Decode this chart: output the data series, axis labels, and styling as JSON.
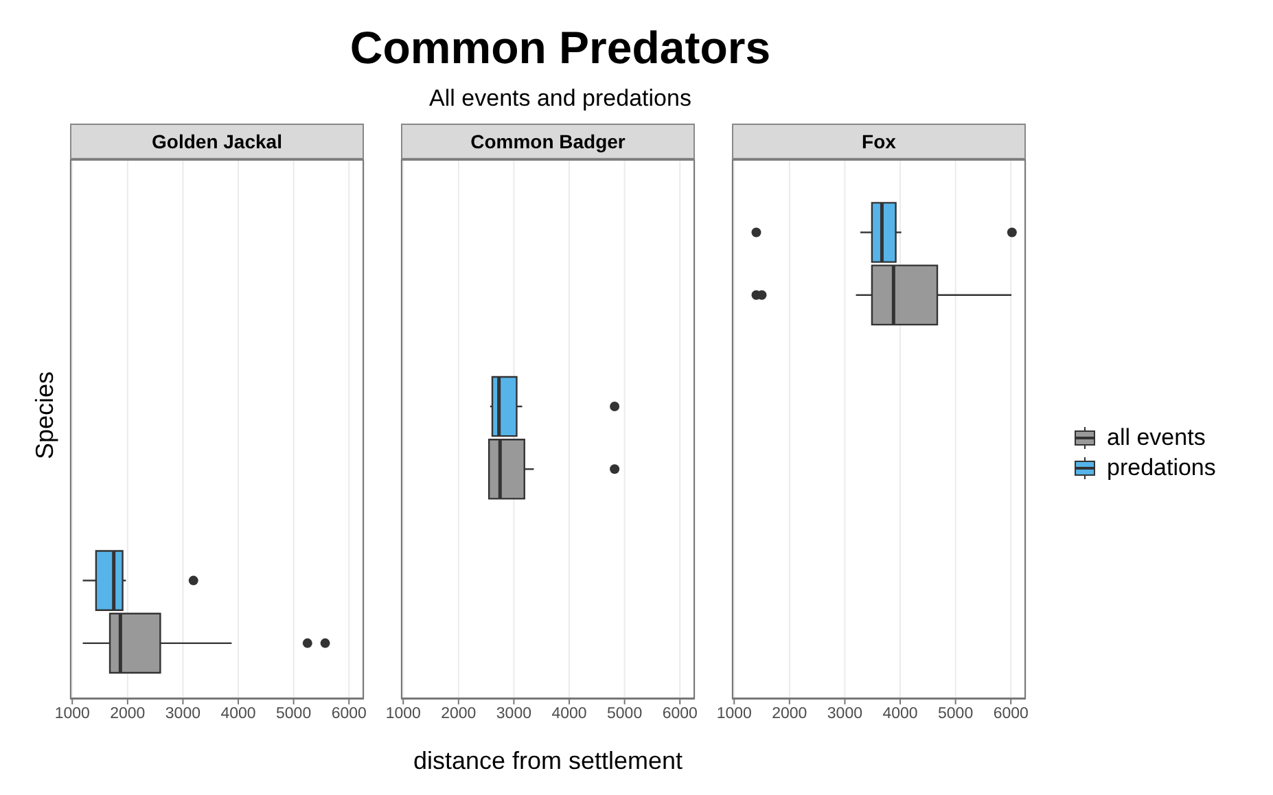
{
  "chart_data": [
    {
      "type": "box",
      "orientation": "horizontal",
      "title": "Golden Jackal",
      "ylabel": "Species",
      "annotations": [
        "Common Predators",
        "All events and predations"
      ],
      "categories": [
        null,
        null,
        null
      ],
      "xlim": [
        960,
        6270
      ],
      "xticks": [
        1000,
        2000,
        3000,
        4000,
        5000,
        6000
      ],
      "grid": true,
      "tick_labels": "x",
      "legend": "right",
      "series": [
        {
          "name": "all events",
          "color": "#999999",
          "boxes": [
            null,
            null,
            {
              "low": 1190,
              "q1": 1680,
              "median": 1870,
              "q3": 2590,
              "high": 3880,
              "outliers": [
                5250,
                5570
              ]
            }
          ]
        },
        {
          "name": "predations",
          "color": "#56b4e9",
          "boxes": [
            null,
            null,
            {
              "low": 1190,
              "q1": 1430,
              "median": 1750,
              "q3": 1910,
              "high": 1970,
              "outliers": [
                3190
              ]
            }
          ]
        }
      ]
    },
    {
      "type": "box",
      "orientation": "horizontal",
      "title": "Common Badger",
      "xlabel": "distance from settlement",
      "categories": [
        null,
        null,
        null
      ],
      "xlim": [
        960,
        6270
      ],
      "xticks": [
        1000,
        2000,
        3000,
        4000,
        5000,
        6000
      ],
      "grid": true,
      "tick_labels": "x",
      "series": [
        {
          "color": "#999999",
          "boxes": [
            null,
            {
              "low": 2550,
              "q1": 2550,
              "median": 2750,
              "q3": 3190,
              "high": 3360,
              "outliers": [
                4820
              ]
            },
            null
          ]
        },
        {
          "color": "#56b4e9",
          "boxes": [
            null,
            {
              "low": 2570,
              "q1": 2610,
              "median": 2730,
              "q3": 3050,
              "high": 3150,
              "outliers": [
                4820
              ]
            },
            null
          ]
        }
      ]
    },
    {
      "type": "box",
      "orientation": "horizontal",
      "title": "Fox",
      "categories": [
        null,
        null,
        null
      ],
      "xlim": [
        960,
        6270
      ],
      "xticks": [
        1000,
        2000,
        3000,
        4000,
        5000,
        6000
      ],
      "grid": true,
      "tick_labels": "x",
      "series": [
        {
          "color": "#999999",
          "boxes": [
            {
              "low": 3200,
              "q1": 3490,
              "median": 3880,
              "q3": 4670,
              "high": 6010,
              "outliers": [
                1400,
                1500
              ]
            },
            null,
            null
          ]
        },
        {
          "color": "#56b4e9",
          "boxes": [
            {
              "low": 3280,
              "q1": 3490,
              "median": 3670,
              "q3": 3920,
              "high": 4020,
              "outliers": [
                1400,
                6020
              ]
            },
            null,
            null
          ]
        }
      ]
    }
  ]
}
